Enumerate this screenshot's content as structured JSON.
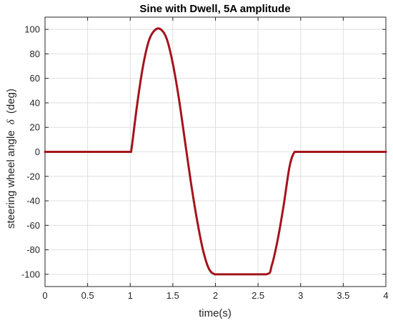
{
  "chart_data": {
    "type": "line",
    "title": "Sine with Dwell, 5A amplitude",
    "xlabel": "time(s)",
    "ylabel": "steering wheel angle",
    "ylabel_symbol": "δ",
    "ylabel_unit": "(deg)",
    "xlim": [
      0,
      4
    ],
    "ylim": [
      -110,
      110
    ],
    "x_ticks": [
      0,
      0.5,
      1,
      1.5,
      2,
      2.5,
      3,
      3.5,
      4
    ],
    "x_tick_labels": [
      "0",
      "0.5",
      "1",
      "1.5",
      "2",
      "2.5",
      "3",
      "3.5",
      "4"
    ],
    "y_ticks": [
      -100,
      -80,
      -60,
      -40,
      -20,
      0,
      20,
      40,
      60,
      80,
      100
    ],
    "y_tick_labels": [
      "-100",
      "-80",
      "-60",
      "-40",
      "-20",
      "0",
      "20",
      "40",
      "60",
      "80",
      "100"
    ],
    "grid": true,
    "series": [
      {
        "color": "#a3141c",
        "x": [
          0,
          0.5,
          0.99,
          1.01,
          1.08,
          1.15,
          1.22,
          1.29,
          1.36,
          1.43,
          1.5,
          1.57,
          1.64,
          1.71,
          1.78,
          1.85,
          1.92,
          1.99,
          2.06,
          2.3,
          2.6,
          2.66,
          2.73,
          2.8,
          2.87,
          2.93,
          3.0,
          3.5,
          4.0
        ],
        "y": [
          0,
          0,
          0,
          0,
          38,
          70,
          91,
          99.5,
          100,
          92,
          72,
          44,
          10,
          -24,
          -54,
          -79,
          -95,
          -100,
          -100,
          -100,
          -100,
          -93,
          -72,
          -44,
          -12,
          0,
          0,
          0,
          0
        ]
      }
    ]
  },
  "colors": {
    "axes": "#262626",
    "grid": "#dfdfdf",
    "line": "#a3141c"
  }
}
